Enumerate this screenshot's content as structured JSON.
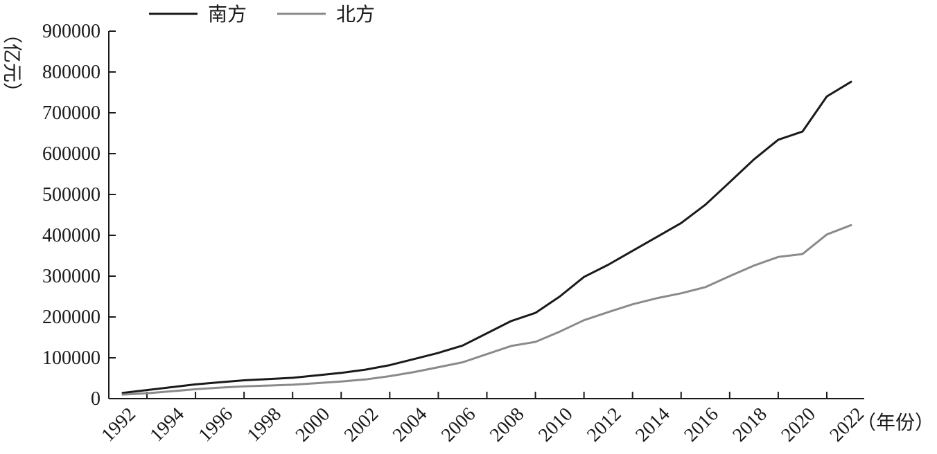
{
  "chart_data": {
    "type": "line",
    "title": "",
    "ylabel": "（亿元）",
    "xlabel": "（年份）",
    "ylim": [
      0,
      900000
    ],
    "yticks": [
      "0",
      "100000",
      "200000",
      "300000",
      "400000",
      "500000",
      "600000",
      "700000",
      "800000",
      "900000"
    ],
    "x": [
      1992,
      1993,
      1994,
      1995,
      1996,
      1997,
      1998,
      1999,
      2000,
      2001,
      2002,
      2003,
      2004,
      2005,
      2006,
      2007,
      2008,
      2009,
      2010,
      2011,
      2012,
      2013,
      2014,
      2015,
      2016,
      2017,
      2018,
      2019,
      2020,
      2021,
      2022
    ],
    "xtick_labels": [
      "1992",
      "1994",
      "1996",
      "1998",
      "2000",
      "2002",
      "2004",
      "2006",
      "2008",
      "2010",
      "2012",
      "2014",
      "2016",
      "2018",
      "2020",
      "2022"
    ],
    "legend": "top-left",
    "grid": false,
    "series": [
      {
        "name": "南方",
        "color": "#1a1a1a",
        "values": [
          14000,
          21000,
          28000,
          35000,
          40000,
          45000,
          48000,
          51000,
          57000,
          63000,
          71000,
          82000,
          97000,
          112000,
          130000,
          160000,
          190000,
          210000,
          250000,
          298000,
          328000,
          362000,
          396000,
          430000,
          475000,
          530000,
          586000,
          634000,
          654000,
          740000,
          776000
        ]
      },
      {
        "name": "北方",
        "color": "#8a8a8a",
        "values": [
          10000,
          13000,
          18000,
          23000,
          27000,
          30000,
          32000,
          34000,
          38000,
          42000,
          47000,
          55000,
          65000,
          77000,
          89000,
          109000,
          129000,
          139000,
          164000,
          192000,
          212000,
          231000,
          246000,
          258000,
          273000,
          300000,
          326000,
          347000,
          354000,
          402000,
          425000
        ]
      }
    ]
  }
}
